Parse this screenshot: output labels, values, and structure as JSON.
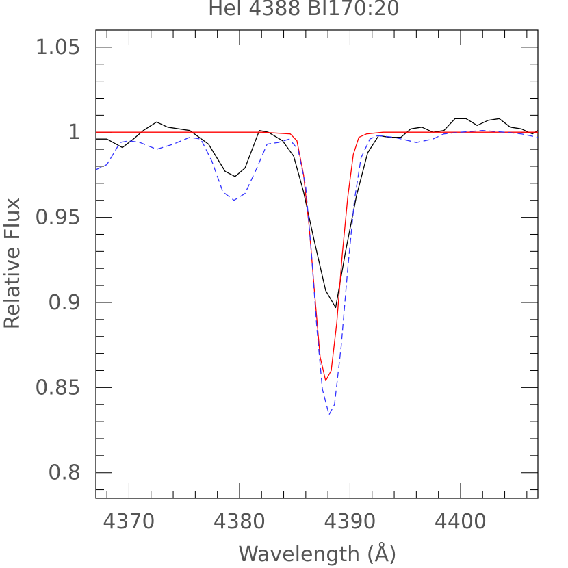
{
  "chart_data": {
    "type": "line",
    "title": "HeI 4388 BI170:20",
    "xlabel": "Wavelength (Å)",
    "ylabel": "Relative Flux",
    "xlim": [
      4367,
      4407
    ],
    "ylim": [
      0.785,
      1.06
    ],
    "x_ticks": [
      4370,
      4380,
      4390,
      4400
    ],
    "x_tick_labels": [
      "4370",
      "4380",
      "4390",
      "4400"
    ],
    "y_ticks": [
      0.8,
      0.85,
      0.9,
      0.95,
      1.0,
      1.05
    ],
    "y_tick_labels": [
      "0.8",
      "0.85",
      "0.9",
      "0.95",
      "1",
      "1.05"
    ],
    "grid": false,
    "series": [
      {
        "color": "#000000",
        "style": "solid",
        "x": [
          4367,
          4368,
          4369.4,
          4370.4,
          4371.3,
          4372.5,
          4373.5,
          4375.5,
          4377.2,
          4378.7,
          4379.6,
          4380.5,
          4381.8,
          4382.6,
          4383.9,
          4384.9,
          4385.8,
          4386.7,
          4387.8,
          4388.7,
          4389.6,
          4390.6,
          4391.6,
          4392.6,
          4393.6,
          4394.6,
          4395.5,
          4396.5,
          4397.5,
          4398.5,
          4399.5,
          4400.5,
          4401.5,
          4402.5,
          4403.5,
          4404.5,
          4405.5,
          4406.5,
          4407
        ],
        "y": [
          0.996,
          0.996,
          0.991,
          0.996,
          1.001,
          1.006,
          1.003,
          1.001,
          0.993,
          0.977,
          0.974,
          0.979,
          1.001,
          1.0,
          0.995,
          0.986,
          0.965,
          0.938,
          0.907,
          0.897,
          0.93,
          0.963,
          0.988,
          0.998,
          0.997,
          0.997,
          1.002,
          1.003,
          1.0,
          1.001,
          1.008,
          1.008,
          1.004,
          1.007,
          1.008,
          1.003,
          1.002,
          0.999,
          1.001
        ]
      },
      {
        "color": "#ff0000",
        "style": "solid",
        "x": [
          4367,
          4382,
          4384.6,
          4385.2,
          4385.8,
          4386.3,
          4386.8,
          4387.3,
          4387.8,
          4388.3,
          4388.8,
          4389.3,
          4389.8,
          4390.3,
          4390.8,
          4391.5,
          4393,
          4407
        ],
        "y": [
          1.0,
          1.0,
          0.999,
          0.995,
          0.975,
          0.945,
          0.905,
          0.868,
          0.854,
          0.86,
          0.888,
          0.928,
          0.962,
          0.987,
          0.997,
          0.999,
          1.0,
          1.0
        ]
      },
      {
        "color": "#3333ff",
        "style": "dashed",
        "x": [
          4367,
          4368,
          4369.2,
          4370,
          4371,
          4372.5,
          4374,
          4375.5,
          4376.5,
          4377.5,
          4378.5,
          4379.5,
          4380.5,
          4381.5,
          4382.5,
          4383.5,
          4384.5,
          4385.3,
          4386,
          4386.5,
          4387,
          4387.5,
          4388.1,
          4388.6,
          4389.2,
          4389.8,
          4390.4,
          4391,
          4391.8,
          4392.5,
          4394,
          4396,
          4397.5,
          4398.5,
          4400,
          4402,
          4404,
          4405.5,
          4407
        ],
        "y": [
          0.978,
          0.981,
          0.994,
          0.995,
          0.994,
          0.99,
          0.993,
          0.997,
          0.996,
          0.983,
          0.965,
          0.96,
          0.964,
          0.978,
          0.993,
          0.994,
          0.996,
          0.99,
          0.968,
          0.93,
          0.885,
          0.849,
          0.834,
          0.84,
          0.874,
          0.92,
          0.96,
          0.985,
          0.996,
          0.998,
          0.997,
          0.994,
          0.996,
          0.999,
          1.0,
          1.001,
          1.0,
          0.999,
          0.997
        ]
      }
    ]
  }
}
